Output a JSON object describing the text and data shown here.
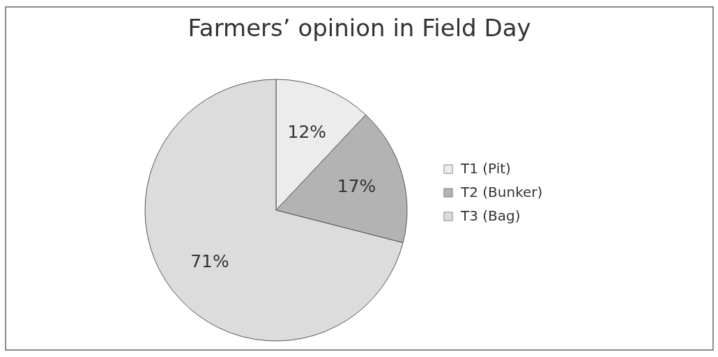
{
  "chart_data": {
    "type": "pie",
    "title": "Farmers’ opinion in Field Day",
    "categories": [
      "T1 (Pit)",
      "T2 (Bunker)",
      "T3 (Bag)"
    ],
    "values": [
      12,
      17,
      71
    ],
    "value_labels": [
      "12%",
      "17%",
      "71%"
    ],
    "colors": [
      "#ececec",
      "#b3b3b3",
      "#dcdcdc"
    ],
    "legend": "right"
  }
}
